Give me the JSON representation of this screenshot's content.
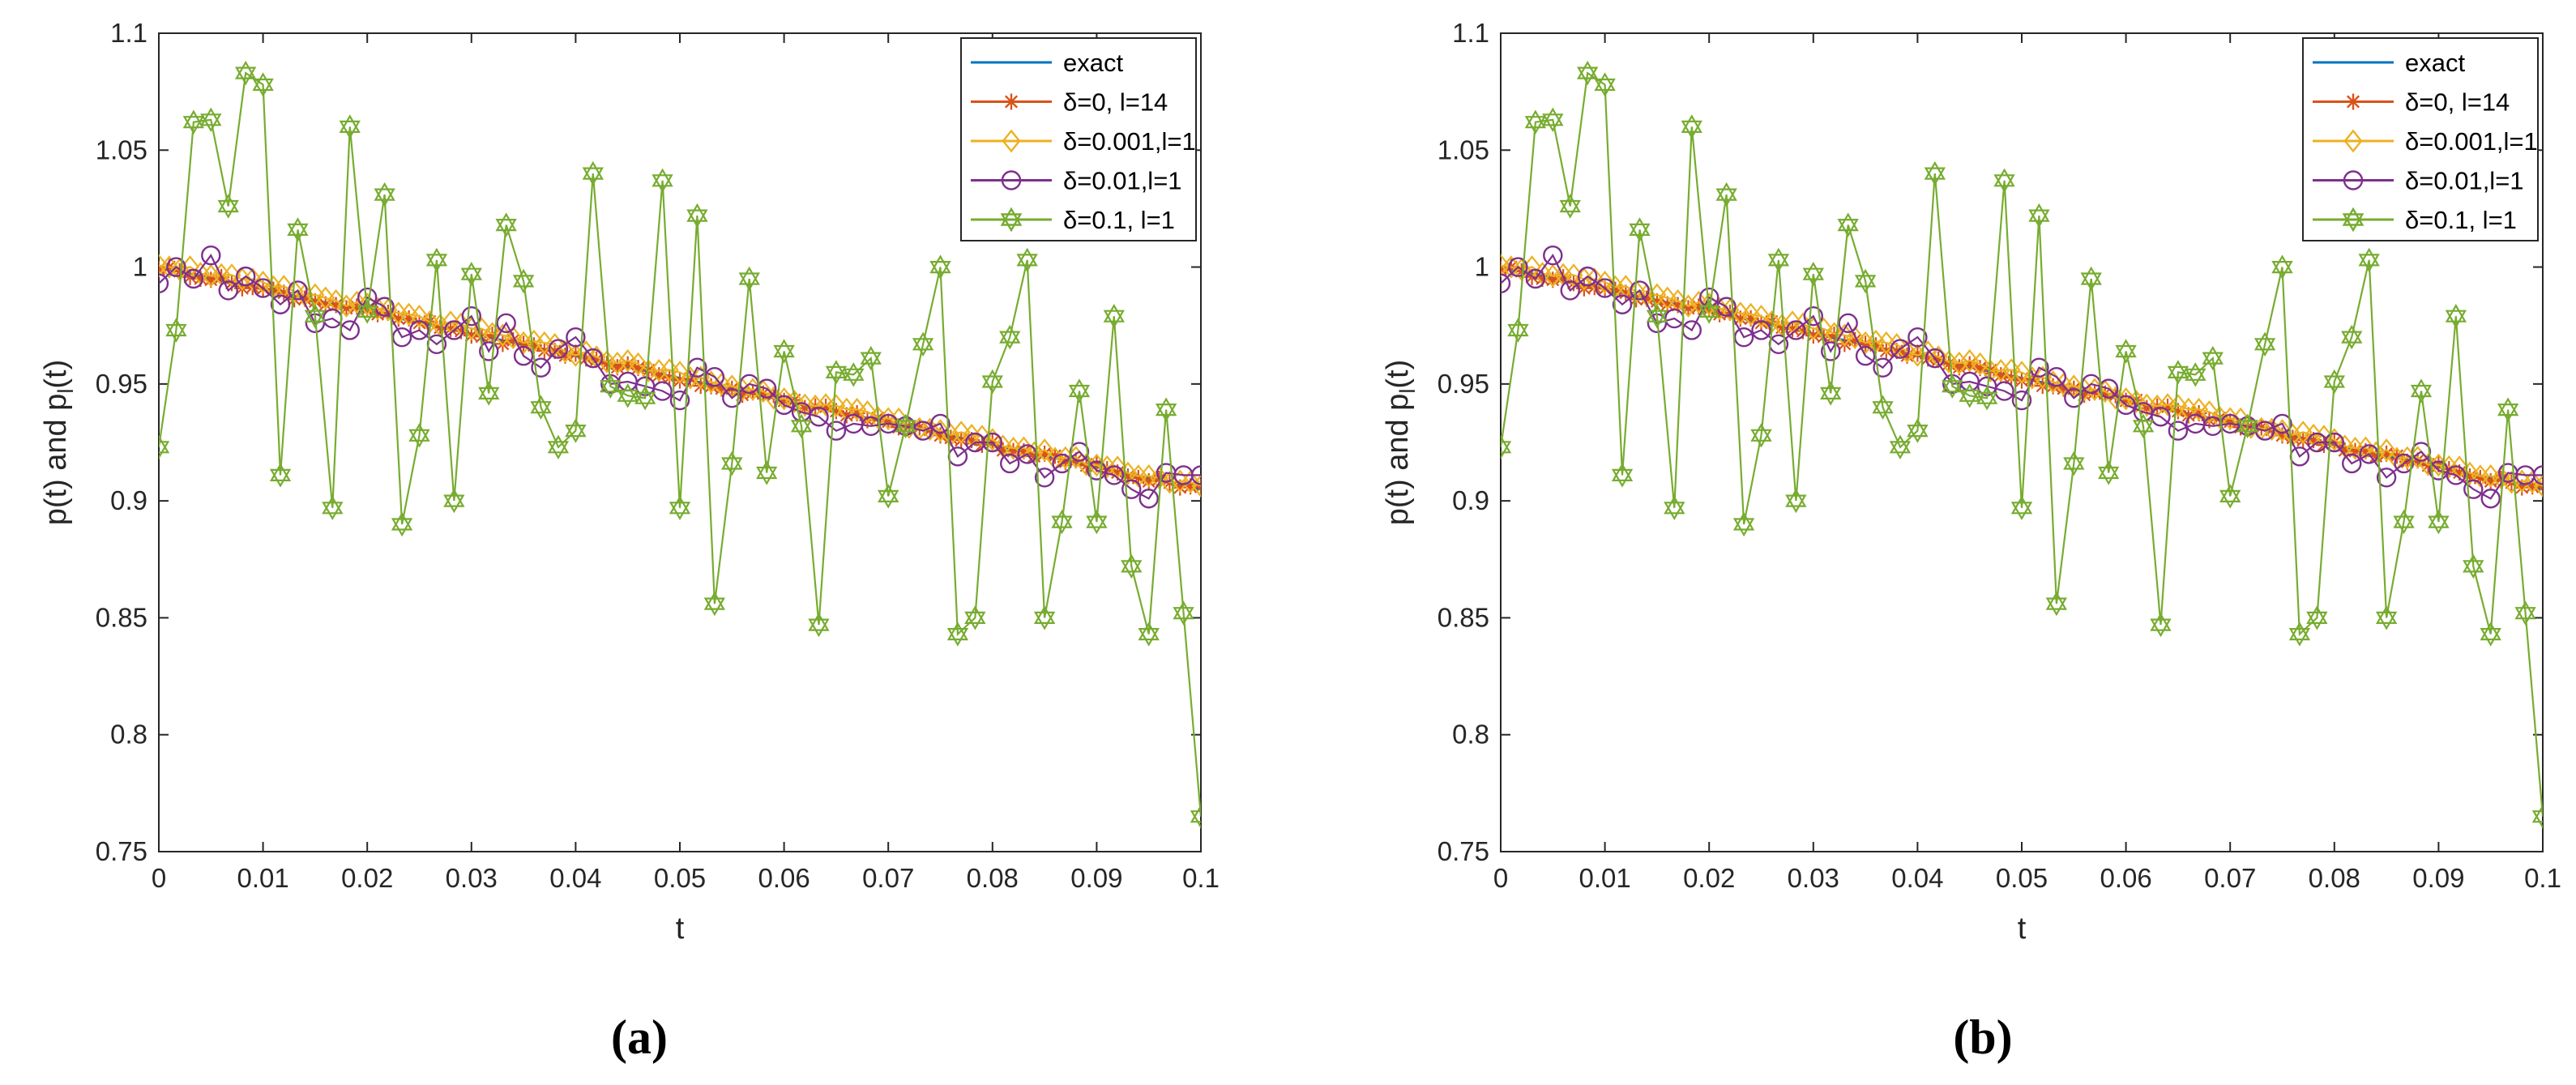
{
  "chart_data": [
    {
      "type": "line",
      "panel_label": "(a)",
      "xlabel": "t",
      "ylabel": "p(t) and p",
      "ylabel_sub": "l",
      "ylabel_tail": "(t)",
      "xlim": [
        0,
        0.1
      ],
      "ylim": [
        0.75,
        1.1
      ],
      "xticks": [
        0,
        0.01,
        0.02,
        0.03,
        0.04,
        0.05,
        0.06,
        0.07,
        0.08,
        0.09,
        0.1
      ],
      "xtick_labels": [
        "0",
        "0.01",
        "0.02",
        "0.03",
        "0.04",
        "0.05",
        "0.06",
        "0.07",
        "0.08",
        "0.09",
        "0.1"
      ],
      "yticks": [
        0.75,
        0.8,
        0.85,
        0.9,
        0.95,
        1,
        1.05,
        1.1
      ],
      "ytick_labels": [
        "0.75",
        "0.8",
        "0.85",
        "0.9",
        "0.95",
        "1",
        "1.05",
        "1.1"
      ],
      "legend_position": "top-right",
      "series": [
        {
          "name": "exact",
          "color": "#0072BD",
          "marker": "none",
          "y_start": 1.0,
          "y_end": 0.905
        },
        {
          "name": "δ=0, l=14",
          "color": "#D95319",
          "marker": "asterisk",
          "y_start": 1.0,
          "y_end": 0.905
        },
        {
          "name": "δ=0.001,l=1",
          "color": "#EDB120",
          "marker": "diamond",
          "y_start": 1.002,
          "y_end": 0.906
        },
        {
          "name": "δ=0.01,l=1",
          "color": "#7E2F8E",
          "marker": "circle",
          "y_start": 1.0,
          "y_end": 0.905,
          "values": [
            0.993,
            1.0,
            0.995,
            1.005,
            0.99,
            0.996,
            0.991,
            0.984,
            0.99,
            0.976,
            0.978,
            0.973,
            0.987,
            0.983,
            0.97,
            0.973,
            0.967,
            0.973,
            0.979,
            0.964,
            0.976,
            0.962,
            0.957,
            0.965,
            0.97,
            0.961,
            0.95,
            0.951,
            0.949,
            0.947,
            0.943,
            0.957,
            0.953,
            0.944,
            0.95,
            0.948,
            0.941,
            0.938,
            0.936,
            0.93,
            0.933,
            0.932,
            0.933,
            0.932,
            0.93,
            0.933,
            0.919,
            0.925,
            0.925,
            0.916,
            0.92,
            0.91,
            0.916,
            0.921,
            0.913,
            0.911,
            0.905,
            0.901,
            0.912,
            0.911,
            0.911
          ]
        },
        {
          "name": "δ=0.1, l=1",
          "color": "#77AC30",
          "marker": "hexagram",
          "y_start": 1.0,
          "y_end": 0.905,
          "values": [
            0.923,
            0.973,
            1.062,
            1.063,
            1.026,
            1.083,
            1.078,
            0.911,
            1.016,
            0.979,
            0.897,
            1.06,
            0.981,
            1.031,
            0.89,
            0.928,
            1.003,
            0.9,
            0.997,
            0.946,
            1.018,
            0.994,
            0.94,
            0.923,
            0.93,
            1.04,
            0.949,
            0.945,
            0.944,
            1.037,
            0.897,
            1.022,
            0.856,
            0.916,
            0.995,
            0.912,
            0.964,
            0.932,
            0.847,
            0.955,
            0.954,
            0.961,
            0.902,
            0.932,
            0.967,
            1.0,
            0.843,
            0.85,
            0.951,
            0.97,
            1.003,
            0.85,
            0.891,
            0.947,
            0.891,
            0.979,
            0.872,
            0.843,
            0.939,
            0.852,
            0.765
          ]
        }
      ]
    },
    {
      "type": "line",
      "panel_label": "(b)",
      "xlabel": "t",
      "ylabel": "p(t) and p",
      "ylabel_sub": "l",
      "ylabel_tail": "(t)",
      "xlim": [
        0,
        0.1
      ],
      "ylim": [
        0.75,
        1.1
      ],
      "xticks": [
        0,
        0.01,
        0.02,
        0.03,
        0.04,
        0.05,
        0.06,
        0.07,
        0.08,
        0.09,
        0.1
      ],
      "xtick_labels": [
        "0",
        "0.01",
        "0.02",
        "0.03",
        "0.04",
        "0.05",
        "0.06",
        "0.07",
        "0.08",
        "0.09",
        "0.1"
      ],
      "yticks": [
        0.75,
        0.8,
        0.85,
        0.9,
        0.95,
        1,
        1.05,
        1.1
      ],
      "ytick_labels": [
        "0.75",
        "0.8",
        "0.85",
        "0.9",
        "0.95",
        "1",
        "1.05",
        "1.1"
      ],
      "legend_position": "top-right",
      "series": [
        {
          "name": "exact",
          "color": "#0072BD",
          "marker": "none",
          "y_start": 1.0,
          "y_end": 0.905
        },
        {
          "name": "δ=0, l=14",
          "color": "#D95319",
          "marker": "asterisk",
          "y_start": 1.0,
          "y_end": 0.905
        },
        {
          "name": "δ=0.001,l=1",
          "color": "#EDB120",
          "marker": "diamond",
          "y_start": 1.002,
          "y_end": 0.906
        },
        {
          "name": "δ=0.01,l=1",
          "color": "#7E2F8E",
          "marker": "circle",
          "y_start": 1.0,
          "y_end": 0.905,
          "values": [
            0.993,
            1.0,
            0.995,
            1.005,
            0.99,
            0.996,
            0.991,
            0.984,
            0.99,
            0.976,
            0.978,
            0.973,
            0.987,
            0.983,
            0.97,
            0.973,
            0.967,
            0.973,
            0.979,
            0.964,
            0.976,
            0.962,
            0.957,
            0.965,
            0.97,
            0.961,
            0.95,
            0.951,
            0.949,
            0.947,
            0.943,
            0.957,
            0.953,
            0.944,
            0.95,
            0.948,
            0.941,
            0.938,
            0.936,
            0.93,
            0.933,
            0.932,
            0.933,
            0.932,
            0.93,
            0.933,
            0.919,
            0.925,
            0.925,
            0.916,
            0.92,
            0.91,
            0.916,
            0.921,
            0.913,
            0.911,
            0.905,
            0.901,
            0.912,
            0.911,
            0.911
          ]
        },
        {
          "name": "δ=0.1, l=1",
          "color": "#77AC30",
          "marker": "hexagram",
          "y_start": 1.0,
          "y_end": 0.905,
          "values": [
            0.923,
            0.973,
            1.062,
            1.063,
            1.026,
            1.083,
            1.078,
            0.911,
            1.016,
            0.979,
            0.897,
            1.06,
            0.981,
            1.031,
            0.89,
            0.928,
            1.003,
            0.9,
            0.997,
            0.946,
            1.018,
            0.994,
            0.94,
            0.923,
            0.93,
            1.04,
            0.949,
            0.945,
            0.944,
            1.037,
            0.897,
            1.022,
            0.856,
            0.916,
            0.995,
            0.912,
            0.964,
            0.932,
            0.847,
            0.955,
            0.954,
            0.961,
            0.902,
            0.932,
            0.967,
            1.0,
            0.843,
            0.85,
            0.951,
            0.97,
            1.003,
            0.85,
            0.891,
            0.947,
            0.891,
            0.979,
            0.872,
            0.843,
            0.939,
            0.852,
            0.765
          ]
        }
      ]
    }
  ]
}
